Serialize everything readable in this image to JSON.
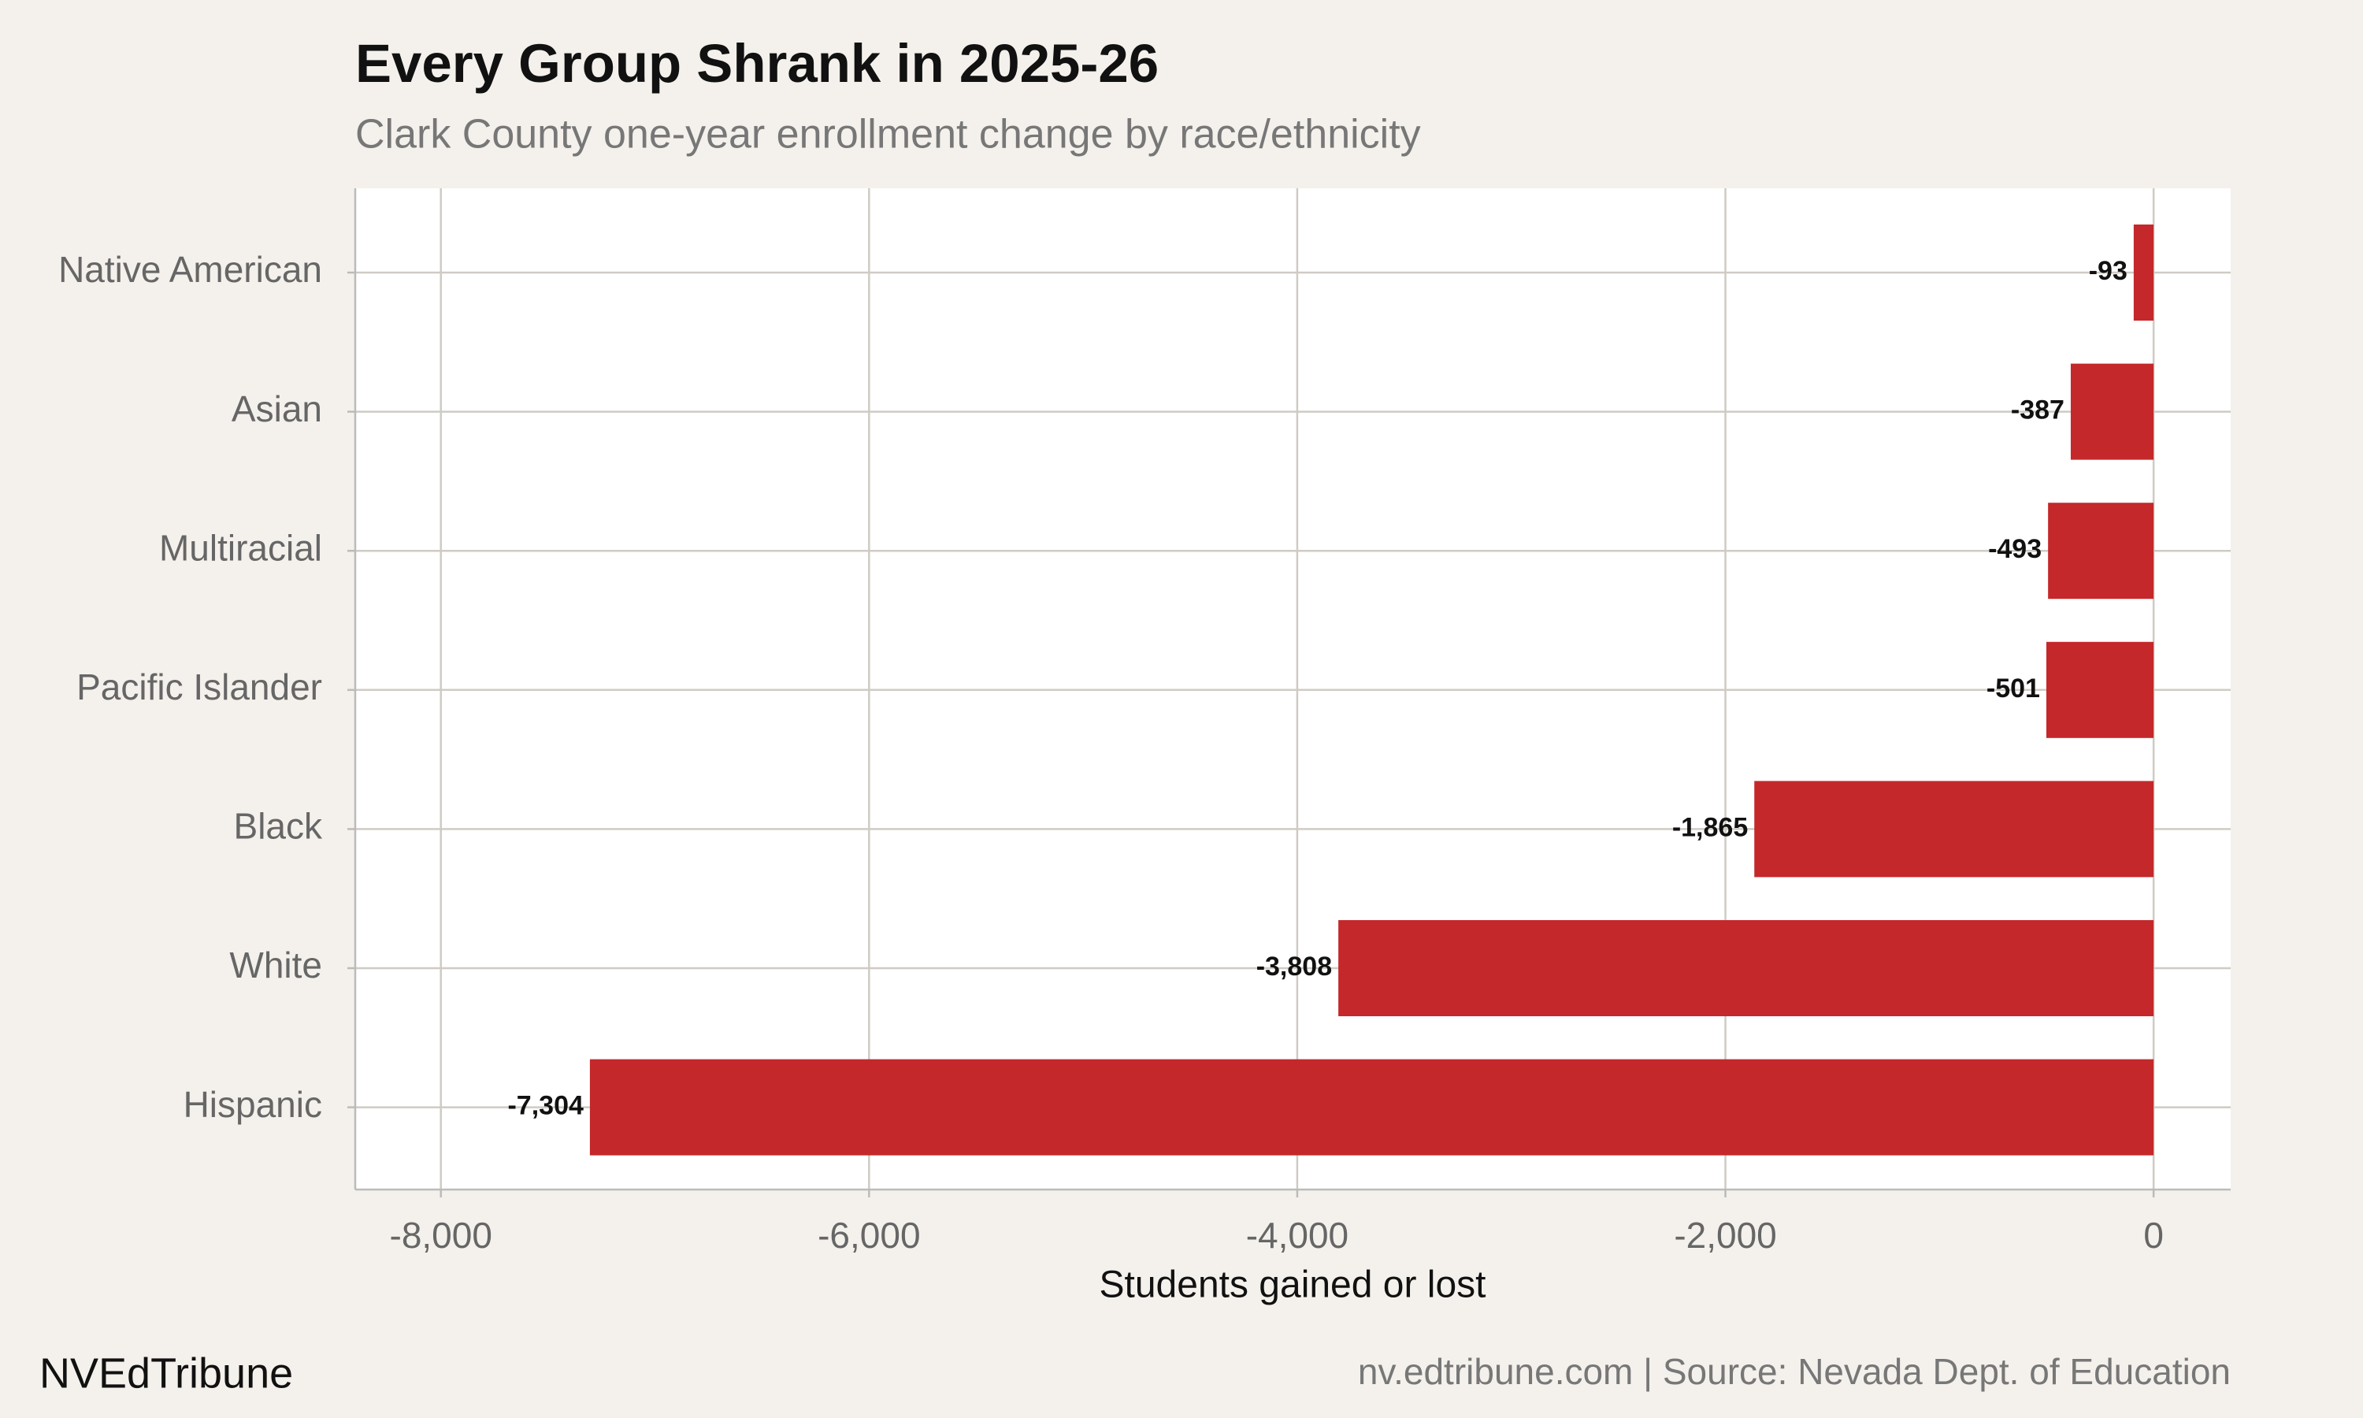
{
  "chart_data": {
    "type": "bar",
    "orientation": "horizontal",
    "title": "Every Group Shrank in 2025-26",
    "subtitle": "Clark County one-year enrollment change by race/ethnicity",
    "xlabel": "Students gained or lost",
    "categories": [
      "Native American",
      "Asian",
      "Multiracial",
      "Pacific Islander",
      "Black",
      "White",
      "Hispanic"
    ],
    "values": [
      -93,
      -387,
      -493,
      -501,
      -1865,
      -3808,
      -7304
    ],
    "value_labels": [
      "-93",
      "-387",
      "-493",
      "-501",
      "-1,865",
      "-3,808",
      "-7,304"
    ],
    "color": "#c4282a",
    "xlim": [
      -8400,
      360
    ],
    "xticks": [
      {
        "value": -8000,
        "label": "-8,000"
      },
      {
        "value": -6000,
        "label": "-6,000"
      },
      {
        "value": -4000,
        "label": "-4,000"
      },
      {
        "value": -2000,
        "label": "-2,000"
      },
      0
    ],
    "grid": true,
    "footer_left": "NVEdTribune",
    "footer_right": "nv.edtribune.com | Source: Nevada Dept. of Education"
  }
}
